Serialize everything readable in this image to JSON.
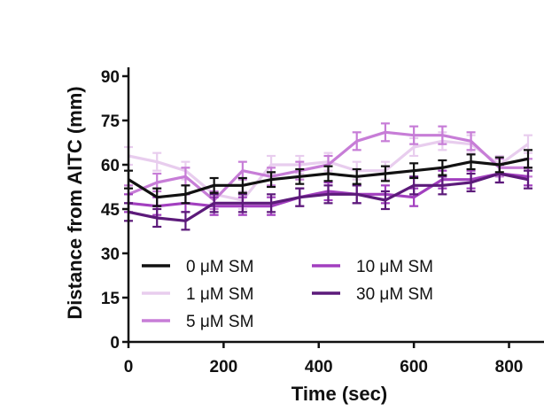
{
  "chart_data": {
    "type": "line",
    "title": "",
    "xlabel": "Time (sec)",
    "ylabel": "Distance from AITC (mm)",
    "xlim": [
      0,
      840
    ],
    "ylim": [
      0,
      90
    ],
    "xticks": [
      0,
      200,
      400,
      600,
      800
    ],
    "yticks": [
      0,
      15,
      30,
      45,
      60,
      75,
      90
    ],
    "ytick_labels": [
      "0",
      "15",
      "30",
      "45",
      "60",
      "75",
      "90"
    ],
    "xtick_labels": [
      "0",
      "200",
      "400",
      "600",
      "800"
    ],
    "x": [
      0,
      60,
      120,
      180,
      240,
      300,
      360,
      420,
      480,
      540,
      600,
      660,
      720,
      780,
      840
    ],
    "series": [
      {
        "name": "0 μM SM",
        "color": "#111111",
        "values": [
          55,
          49,
          50,
          53,
          53,
          55,
          56,
          57,
          56,
          57,
          58,
          59,
          61,
          60,
          62
        ],
        "errors": [
          3,
          3,
          3,
          2.5,
          2.5,
          2.5,
          2.5,
          2.5,
          2.5,
          2.5,
          2.5,
          2.5,
          2.5,
          2.5,
          3
        ]
      },
      {
        "name": "1 μM SM",
        "color": "#e8cdee",
        "values": [
          63,
          61,
          58,
          50,
          48,
          60,
          60,
          61,
          58,
          58,
          66,
          68,
          67,
          60,
          67
        ],
        "errors": [
          3,
          3,
          3,
          3,
          3,
          3,
          3,
          3,
          3,
          3,
          3,
          3,
          3,
          3,
          3
        ]
      },
      {
        "name": "5 μM SM",
        "color": "#c77dd7",
        "values": [
          50,
          54,
          56,
          48,
          58,
          56,
          58,
          60,
          68,
          71,
          70,
          70,
          68,
          59,
          59
        ],
        "errors": [
          3,
          3,
          3,
          3,
          3,
          3,
          3,
          3,
          3,
          3,
          3,
          3,
          3,
          3,
          3
        ]
      },
      {
        "name": "10 μM SM",
        "color": "#a23fbf",
        "values": [
          47,
          46,
          47,
          46,
          46,
          46,
          49,
          51,
          50,
          50,
          49,
          55,
          55,
          57,
          56
        ],
        "errors": [
          3,
          3,
          3,
          3,
          3,
          3,
          3,
          3,
          3,
          3,
          3,
          3,
          3,
          3,
          3
        ]
      },
      {
        "name": "30 μM SM",
        "color": "#5c1a7a",
        "values": [
          44,
          42,
          41,
          47,
          47,
          47,
          49,
          50,
          50,
          48,
          53,
          53,
          54,
          57,
          55
        ],
        "errors": [
          3,
          3,
          3,
          3,
          3,
          3,
          3,
          3,
          3,
          3,
          3,
          3,
          3,
          3,
          3
        ]
      }
    ],
    "legend": {
      "placement": "bottom-left",
      "items": [
        {
          "label": "0 μM SM",
          "color": "#111111"
        },
        {
          "label": "1 μM SM",
          "color": "#e8cdee"
        },
        {
          "label": "5 μM SM",
          "color": "#c77dd7"
        },
        {
          "label": "10 μM SM",
          "color": "#a23fbf"
        },
        {
          "label": "30 μM SM",
          "color": "#5c1a7a"
        }
      ]
    }
  }
}
